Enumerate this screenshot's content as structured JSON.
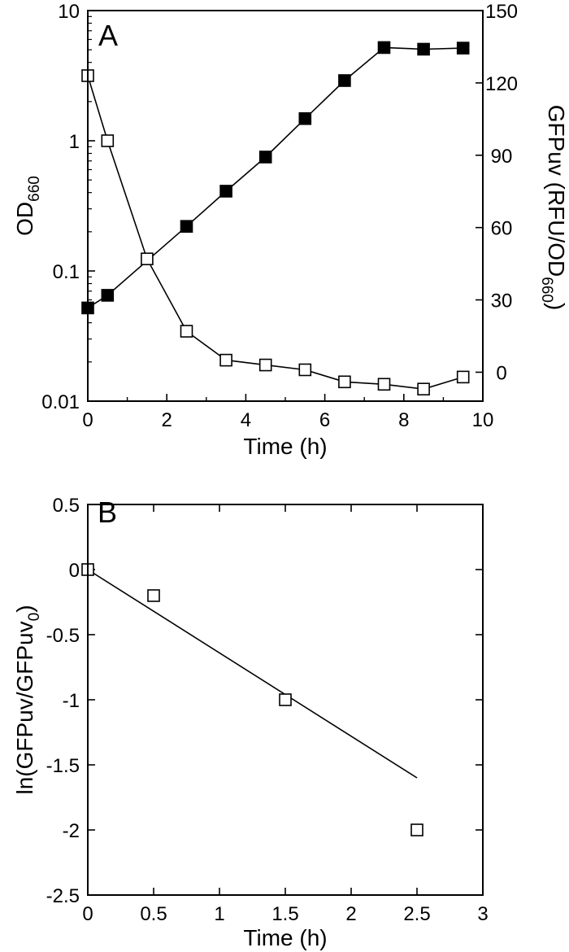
{
  "chart_data": [
    {
      "panel": "A",
      "type": "scatter",
      "x_axis": {
        "label": "Time (h)",
        "lim": [
          0,
          10
        ],
        "ticks": [
          0,
          2,
          4,
          6,
          8,
          10
        ],
        "tick_labels": [
          "0",
          "2",
          "4",
          "6",
          "8",
          "10"
        ]
      },
      "y_left": {
        "label_main": "OD",
        "label_sub": "660",
        "scale": "log",
        "lim": [
          0.01,
          10
        ],
        "ticks": [
          0.01,
          0.1,
          1,
          10
        ],
        "tick_labels": [
          "0.01",
          "0.1",
          "1",
          "10"
        ]
      },
      "y_right": {
        "label_main": "GFPuv (RFU/OD",
        "label_sub": "660",
        "label_end": ")",
        "scale": "linear",
        "lim": [
          -12,
          150
        ],
        "ticks": [
          0,
          30,
          60,
          90,
          120,
          150
        ],
        "tick_labels": [
          "0",
          "30",
          "60",
          "90",
          "120",
          "150"
        ]
      },
      "series": [
        {
          "marker": "filled-square",
          "axis": "left",
          "x": [
            0,
            0.5,
            2.5,
            3.5,
            4.5,
            5.5,
            6.5,
            7.5,
            8.5,
            9.5
          ],
          "y": [
            0.052,
            0.065,
            0.22,
            0.41,
            0.75,
            1.48,
            2.9,
            5.2,
            5.05,
            5.15
          ]
        },
        {
          "marker": "open-square",
          "axis": "right",
          "x": [
            0,
            0.5,
            1.5,
            2.5,
            3.5,
            4.5,
            5.5,
            6.5,
            7.5,
            8.5,
            9.5
          ],
          "y": [
            123,
            96,
            47,
            17,
            5,
            3,
            1,
            -4,
            -5,
            -7,
            -2
          ]
        }
      ],
      "grid": false
    },
    {
      "panel": "B",
      "type": "scatter",
      "x_axis": {
        "label": "Time (h)",
        "lim": [
          0,
          3
        ],
        "ticks": [
          0,
          0.5,
          1,
          1.5,
          2,
          2.5,
          3
        ],
        "tick_labels": [
          "0",
          "0.5",
          "1",
          "1.5",
          "2",
          "2.5",
          "3"
        ]
      },
      "y_axis": {
        "label_main": "ln(GFPuv/GFPuv",
        "label_sub": "0",
        "label_end": ")",
        "scale": "linear",
        "lim": [
          -2.5,
          0.5
        ],
        "ticks": [
          0.5,
          0,
          -0.5,
          -1,
          -1.5,
          -2,
          -2.5
        ],
        "tick_labels": [
          "0.5",
          "0",
          "-0.5",
          "-1",
          "-1.5",
          "-2",
          "-2.5"
        ]
      },
      "series": [
        {
          "marker": "open-square",
          "x": [
            0,
            0.5,
            1.5,
            2.5
          ],
          "y": [
            0,
            -0.2,
            -1,
            -2
          ]
        }
      ],
      "fit_line": {
        "x": [
          0,
          2.5
        ],
        "y": [
          0,
          -1.6
        ]
      },
      "grid": false
    }
  ]
}
